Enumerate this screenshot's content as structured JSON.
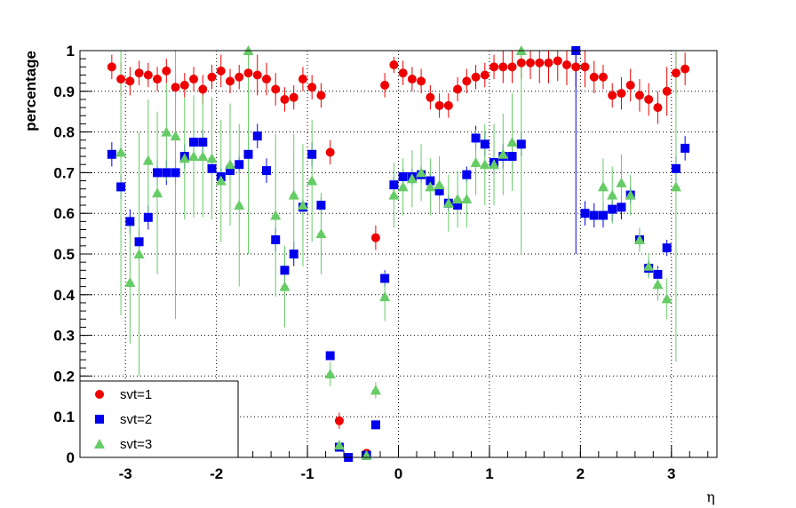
{
  "chart_data": {
    "type": "scatter",
    "xlabel": "η",
    "ylabel": "percentage",
    "xlim": [
      -3.5,
      3.5
    ],
    "ylim": [
      0,
      1
    ],
    "grid": true,
    "legend_position": "bottom-left",
    "x_ticks": [
      -3,
      -2,
      -1,
      0,
      1,
      2,
      3
    ],
    "x_tick_labels": [
      "-3",
      "-2",
      "-1",
      "0",
      "1",
      "2",
      "3"
    ],
    "y_ticks": [
      0,
      0.1,
      0.2,
      0.3,
      0.4,
      0.5,
      0.6,
      0.7,
      0.8,
      0.9,
      1
    ],
    "y_tick_labels": [
      "0",
      "0.1",
      "0.2",
      "0.3",
      "0.4",
      "0.5",
      "0.6",
      "0.7",
      "0.8",
      "0.9",
      "1"
    ],
    "series": [
      {
        "name": "svt=1",
        "color": "#ee0000",
        "marker": "circle",
        "x": [
          -3.15,
          -3.05,
          -2.95,
          -2.85,
          -2.75,
          -2.65,
          -2.55,
          -2.45,
          -2.35,
          -2.25,
          -2.15,
          -2.05,
          -1.95,
          -1.85,
          -1.75,
          -1.65,
          -1.55,
          -1.45,
          -1.35,
          -1.25,
          -1.15,
          -1.05,
          -0.95,
          -0.85,
          -0.75,
          -0.65,
          -0.35,
          -0.25,
          -0.15,
          -0.05,
          0.05,
          0.15,
          0.25,
          0.35,
          0.45,
          0.55,
          0.65,
          0.75,
          0.85,
          0.95,
          1.05,
          1.15,
          1.25,
          1.35,
          1.45,
          1.55,
          1.65,
          1.75,
          1.85,
          1.95,
          2.05,
          2.15,
          2.25,
          2.35,
          2.45,
          2.55,
          2.65,
          2.75,
          2.85,
          2.95,
          3.05,
          3.15
        ],
        "y": [
          0.96,
          0.93,
          0.925,
          0.945,
          0.94,
          0.93,
          0.95,
          0.91,
          0.915,
          0.93,
          0.905,
          0.935,
          0.95,
          0.925,
          0.935,
          0.945,
          0.94,
          0.93,
          0.905,
          0.88,
          0.885,
          0.93,
          0.91,
          0.89,
          0.75,
          0.09,
          0.01,
          0.54,
          0.915,
          0.965,
          0.945,
          0.93,
          0.925,
          0.885,
          0.865,
          0.865,
          0.905,
          0.925,
          0.935,
          0.94,
          0.96,
          0.96,
          0.96,
          0.97,
          0.97,
          0.97,
          0.97,
          0.975,
          0.965,
          0.96,
          0.96,
          0.935,
          0.935,
          0.89,
          0.895,
          0.915,
          0.89,
          0.88,
          0.86,
          0.9,
          0.945,
          0.955
        ],
        "err": [
          0.03,
          0.04,
          0.035,
          0.03,
          0.03,
          0.03,
          0.03,
          0.03,
          0.03,
          0.03,
          0.035,
          0.03,
          0.04,
          0.03,
          0.03,
          0.04,
          0.05,
          0.04,
          0.04,
          0.03,
          0.03,
          0.03,
          0.03,
          0.03,
          0.03,
          0.02,
          0.005,
          0.03,
          0.03,
          0.02,
          0.03,
          0.03,
          0.03,
          0.03,
          0.03,
          0.03,
          0.03,
          0.03,
          0.03,
          0.03,
          0.03,
          0.04,
          0.04,
          0.04,
          0.04,
          0.05,
          0.05,
          0.05,
          0.05,
          0.05,
          0.05,
          0.04,
          0.03,
          0.03,
          0.04,
          0.04,
          0.04,
          0.04,
          0.04,
          0.06,
          0.05,
          0.04
        ]
      },
      {
        "name": "svt=2",
        "color": "#0000ee",
        "marker": "square",
        "x": [
          -3.15,
          -3.05,
          -2.95,
          -2.85,
          -2.75,
          -2.65,
          -2.55,
          -2.45,
          -2.35,
          -2.25,
          -2.15,
          -2.05,
          -1.95,
          -1.85,
          -1.75,
          -1.65,
          -1.55,
          -1.45,
          -1.35,
          -1.25,
          -1.15,
          -1.05,
          -0.95,
          -0.85,
          -0.75,
          -0.65,
          -0.55,
          -0.35,
          -0.25,
          -0.15,
          -0.05,
          0.05,
          0.15,
          0.25,
          0.35,
          0.45,
          0.55,
          0.65,
          0.75,
          0.85,
          0.95,
          1.05,
          1.15,
          1.25,
          1.35,
          1.95,
          2.05,
          2.15,
          2.25,
          2.35,
          2.45,
          2.55,
          2.65,
          2.75,
          2.85,
          2.95,
          3.05,
          3.15
        ],
        "y": [
          0.745,
          0.665,
          0.58,
          0.53,
          0.59,
          0.7,
          0.7,
          0.7,
          0.74,
          0.775,
          0.775,
          0.71,
          0.69,
          0.705,
          0.72,
          0.745,
          0.79,
          0.705,
          0.535,
          0.46,
          0.5,
          0.615,
          0.745,
          0.62,
          0.25,
          0.025,
          0.0,
          0.005,
          0.08,
          0.44,
          0.67,
          0.69,
          0.69,
          0.695,
          0.68,
          0.655,
          0.625,
          0.62,
          0.695,
          0.785,
          0.77,
          0.725,
          0.74,
          0.74,
          0.77,
          1.0,
          0.6,
          0.595,
          0.595,
          0.61,
          0.615,
          0.645,
          0.535,
          0.465,
          0.45,
          0.515,
          0.71,
          0.76
        ],
        "err": [
          0.03,
          0.03,
          0.03,
          0.03,
          0.03,
          0.03,
          0.03,
          0.03,
          0.03,
          0.03,
          0.03,
          0.02,
          0.02,
          0.02,
          0.02,
          0.03,
          0.03,
          0.03,
          0.03,
          0.03,
          0.03,
          0.02,
          0.03,
          0.02,
          0.01,
          0.005,
          0.0,
          0.003,
          0.01,
          0.02,
          0.02,
          0.02,
          0.02,
          0.02,
          0.02,
          0.02,
          0.02,
          0.02,
          0.02,
          0.03,
          0.03,
          0.03,
          0.03,
          0.03,
          0.03,
          0.5,
          0.03,
          0.03,
          0.03,
          0.03,
          0.03,
          0.02,
          0.02,
          0.02,
          0.02,
          0.02,
          0.03,
          0.03
        ]
      },
      {
        "name": "svt=3",
        "color": "#66cc66",
        "marker": "triangle",
        "x": [
          -3.05,
          -2.95,
          -2.85,
          -2.75,
          -2.65,
          -2.55,
          -2.45,
          -2.35,
          -2.25,
          -2.15,
          -2.05,
          -1.95,
          -1.85,
          -1.75,
          -1.65,
          -1.35,
          -1.25,
          -1.15,
          -1.05,
          -0.95,
          -0.85,
          -0.75,
          -0.65,
          -0.35,
          -0.25,
          -0.15,
          -0.05,
          0.05,
          0.15,
          0.25,
          0.35,
          0.45,
          0.55,
          0.65,
          0.75,
          0.85,
          0.95,
          1.05,
          1.15,
          1.25,
          1.35,
          2.25,
          2.35,
          2.45,
          2.55,
          2.65,
          2.75,
          2.85,
          2.95,
          3.05
        ],
        "y": [
          0.75,
          0.43,
          0.5,
          0.73,
          0.65,
          0.8,
          0.79,
          0.735,
          0.74,
          0.74,
          0.735,
          0.68,
          0.72,
          0.62,
          1.0,
          0.595,
          0.42,
          0.645,
          0.62,
          0.68,
          0.55,
          0.205,
          0.03,
          0.005,
          0.165,
          0.395,
          0.645,
          0.665,
          0.685,
          0.7,
          0.665,
          0.67,
          0.625,
          0.635,
          0.635,
          0.725,
          0.72,
          0.72,
          0.745,
          0.775,
          1.0,
          0.665,
          0.645,
          0.675,
          0.645,
          0.535,
          0.47,
          0.425,
          0.39,
          0.665
        ],
        "err": [
          0.4,
          0.15,
          0.3,
          0.15,
          0.2,
          0.12,
          0.45,
          0.15,
          0.15,
          0.15,
          0.15,
          0.15,
          0.15,
          0.2,
          0.5,
          0.2,
          0.1,
          0.15,
          0.15,
          0.15,
          0.1,
          0.03,
          0.01,
          0.005,
          0.02,
          0.06,
          0.08,
          0.07,
          0.07,
          0.07,
          0.07,
          0.07,
          0.07,
          0.07,
          0.07,
          0.08,
          0.1,
          0.1,
          0.1,
          0.12,
          0.5,
          0.07,
          0.07,
          0.07,
          0.05,
          0.03,
          0.03,
          0.04,
          0.05,
          0.43
        ]
      }
    ]
  }
}
